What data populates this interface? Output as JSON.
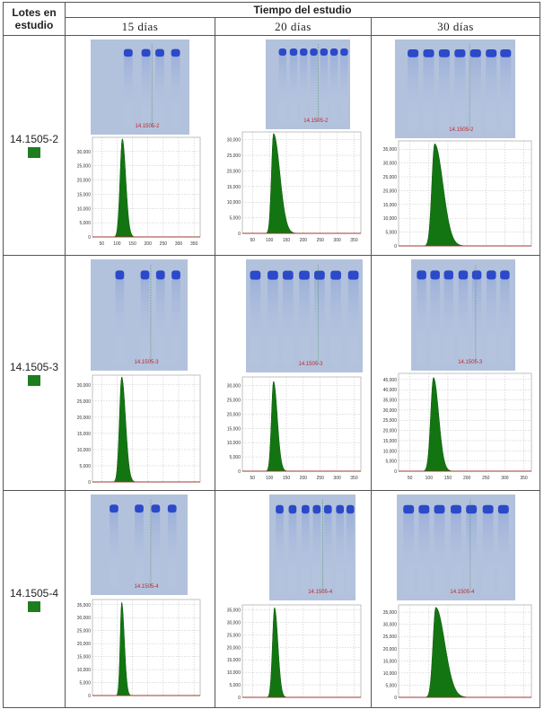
{
  "table": {
    "lot_header_line1": "Lotes en",
    "lot_header_line2": "estudio",
    "time_header": "Tiempo del estudio",
    "days": [
      "15 días",
      "20 días",
      "30 días"
    ],
    "lots": [
      "14.1505-2",
      "14.1505-3",
      "14.1505-4"
    ],
    "gel_labels": [
      [
        "14.1505-2",
        "14.1505-2",
        "14.1505-2"
      ],
      [
        "14.1505-3",
        "14.1505-3",
        "14.1505-3"
      ],
      [
        "14.1505-4",
        "14.1505-4",
        "14.1505-4"
      ]
    ]
  },
  "colors": {
    "swatch": "#1e7d1e",
    "band": "#2b49c9",
    "gel_bg": "#b3c2dc",
    "peak": "#127512"
  },
  "chart_data": [
    {
      "type": "area",
      "lot": "14.1505-2",
      "day": "15 días",
      "x_ticks": [
        50,
        100,
        150,
        200,
        250,
        300,
        350
      ],
      "y_ticks": [
        "0",
        "5,000",
        "10,000",
        "15,000",
        "20,000",
        "25,000",
        "30,000"
      ],
      "xlim": [
        20,
        370
      ],
      "ylim": [
        0,
        35000
      ],
      "peak_x": 117,
      "peak_y": 34500,
      "width_left": 12,
      "width_right": 18
    },
    {
      "type": "area",
      "lot": "14.1505-2",
      "day": "20 días",
      "x_ticks": [
        50,
        100,
        150,
        200,
        250,
        300,
        350
      ],
      "y_ticks": [
        "0",
        "5,000",
        "10,000",
        "15,000",
        "20,000",
        "25,000",
        "30,000"
      ],
      "xlim": [
        20,
        370
      ],
      "ylim": [
        0,
        32500
      ],
      "peak_x": 112,
      "peak_y": 32000,
      "width_left": 10,
      "width_right": 30
    },
    {
      "type": "area",
      "lot": "14.1505-2",
      "day": "30 días",
      "x_ticks": [],
      "y_ticks": [
        "0",
        "5,000",
        "10,000",
        "15,000",
        "20,000",
        "25,000",
        "30,000",
        "35,000"
      ],
      "xlim": [
        20,
        370
      ],
      "ylim": [
        0,
        38000
      ],
      "peak_x": 115,
      "peak_y": 37000,
      "width_left": 12,
      "width_right": 35
    },
    {
      "type": "area",
      "lot": "14.1505-3",
      "day": "15 días",
      "x_ticks": [],
      "y_ticks": [
        "0",
        "5,000",
        "10,000",
        "15,000",
        "20,000",
        "25,000",
        "30,000"
      ],
      "xlim": [
        20,
        370
      ],
      "ylim": [
        0,
        33000
      ],
      "peak_x": 115,
      "peak_y": 32500,
      "width_left": 12,
      "width_right": 20
    },
    {
      "type": "area",
      "lot": "14.1505-3",
      "day": "20 días",
      "x_ticks": [
        50,
        100,
        150,
        200,
        250,
        300,
        350
      ],
      "y_ticks": [
        "0",
        "5,000",
        "10,000",
        "15,000",
        "20,000",
        "25,000",
        "30,000"
      ],
      "xlim": [
        20,
        370
      ],
      "ylim": [
        0,
        33000
      ],
      "peak_x": 112,
      "peak_y": 31500,
      "width_left": 10,
      "width_right": 18
    },
    {
      "type": "area",
      "lot": "14.1505-3",
      "day": "30 días",
      "x_ticks": [
        50,
        100,
        150,
        200,
        250,
        300,
        350
      ],
      "y_ticks": [
        "0",
        "5,000",
        "10,000",
        "15,000",
        "20,000",
        "25,000",
        "30,000",
        "35,000",
        "40,000",
        "45,000"
      ],
      "xlim": [
        20,
        370
      ],
      "ylim": [
        0,
        48000
      ],
      "peak_x": 112,
      "peak_y": 46000,
      "width_left": 12,
      "width_right": 22
    },
    {
      "type": "area",
      "lot": "14.1505-4",
      "day": "15 días",
      "x_ticks": [],
      "y_ticks": [
        "0",
        "5,000",
        "10,000",
        "15,000",
        "20,000",
        "25,000",
        "30,000",
        "35,000"
      ],
      "xlim": [
        20,
        370
      ],
      "ylim": [
        0,
        37000
      ],
      "peak_x": 115,
      "peak_y": 36000,
      "width_left": 8,
      "width_right": 14
    },
    {
      "type": "area",
      "lot": "14.1505-4",
      "day": "20 días",
      "x_ticks": [],
      "y_ticks": [
        "0",
        "5,000",
        "10,000",
        "15,000",
        "20,000",
        "25,000",
        "30,000",
        "35,000"
      ],
      "xlim": [
        20,
        370
      ],
      "ylim": [
        0,
        37000
      ],
      "peak_x": 115,
      "peak_y": 36000,
      "width_left": 10,
      "width_right": 16
    },
    {
      "type": "area",
      "lot": "14.1505-4",
      "day": "30 días",
      "x_ticks": [],
      "y_ticks": [
        "0",
        "5,000",
        "10,000",
        "15,000",
        "20,000",
        "25,000",
        "30,000",
        "35,000"
      ],
      "xlim": [
        20,
        370
      ],
      "ylim": [
        0,
        38000
      ],
      "peak_x": 118,
      "peak_y": 37000,
      "width_left": 12,
      "width_right": 38
    }
  ]
}
